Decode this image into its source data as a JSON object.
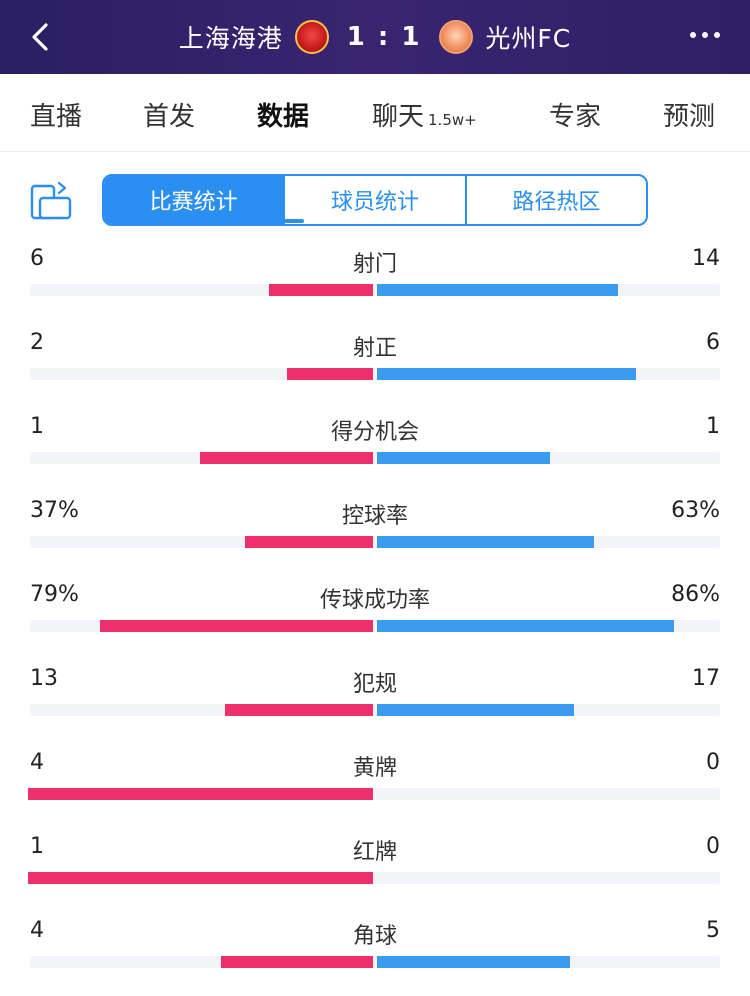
{
  "header": {
    "home_team": "上海海港",
    "away_team": "光州FC",
    "score": "1 : 1"
  },
  "tabs": [
    {
      "label": "直播",
      "sub": ""
    },
    {
      "label": "首发",
      "sub": ""
    },
    {
      "label": "数据",
      "sub": ""
    },
    {
      "label": "聊天",
      "sub": "1.5w+"
    },
    {
      "label": "专家",
      "sub": ""
    },
    {
      "label": "预测",
      "sub": ""
    }
  ],
  "active_tab": "数据",
  "segments": [
    "比赛统计",
    "球员统计",
    "路径热区"
  ],
  "active_segment": "比赛统计",
  "colors": {
    "header": "#2f1f64",
    "accent": "#2a8ff0",
    "home_bar": "#ef2f6b",
    "away_bar": "#3a9bf0"
  },
  "stats": [
    {
      "label": "射门",
      "home": "6",
      "away": "14",
      "home_share": 0.3,
      "away_share": 0.7
    },
    {
      "label": "射正",
      "home": "2",
      "away": "6",
      "home_share": 0.25,
      "away_share": 0.75
    },
    {
      "label": "得分机会",
      "home": "1",
      "away": "1",
      "home_share": 0.5,
      "away_share": 0.5
    },
    {
      "label": "控球率",
      "home": "37%",
      "away": "63%",
      "home_share": 0.37,
      "away_share": 0.63
    },
    {
      "label": "传球成功率",
      "home": "79%",
      "away": "86%",
      "home_share": 0.79,
      "away_share": 0.86
    },
    {
      "label": "犯规",
      "home": "13",
      "away": "17",
      "home_share": 0.43,
      "away_share": 0.57
    },
    {
      "label": "黄牌",
      "home": "4",
      "away": "0",
      "home_share": 1.0,
      "away_share": 0.0
    },
    {
      "label": "红牌",
      "home": "1",
      "away": "0",
      "home_share": 1.0,
      "away_share": 0.0
    },
    {
      "label": "角球",
      "home": "4",
      "away": "5",
      "home_share": 0.44,
      "away_share": 0.56
    }
  ]
}
